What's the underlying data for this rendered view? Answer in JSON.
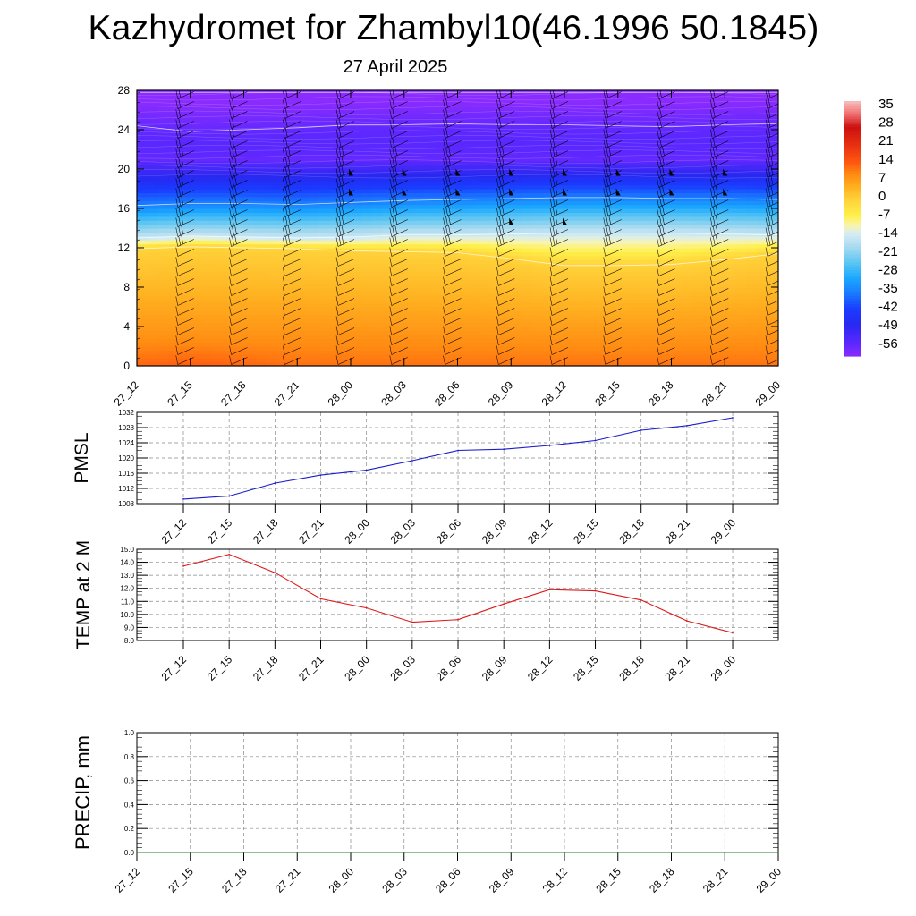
{
  "header": {
    "title": "Kazhydromet for Zhambyl10(46.1996 50.1845)",
    "date": "27 April 2025"
  },
  "colors": {
    "pmsl_line": "#1a1acc",
    "temp_line": "#dd1a1a",
    "precip_line": "#2a7a2a",
    "grid": "#888888"
  },
  "chart_data": [
    {
      "type": "heatmap",
      "name": "vertical-cross-section",
      "x_categories": [
        "27_12",
        "27_15",
        "27_18",
        "27_21",
        "28_00",
        "28_03",
        "28_06",
        "28_09",
        "28_12",
        "28_15",
        "28_18",
        "28_21",
        "29_00"
      ],
      "ylim": [
        0,
        28
      ],
      "y_ticks": [
        0,
        4,
        8,
        12,
        16,
        20,
        24,
        28
      ],
      "colorbar": {
        "labels": [
          "35",
          "28",
          "21",
          "14",
          "7",
          "0",
          "-7",
          "-14",
          "-21",
          "-28",
          "-35",
          "-42",
          "-49",
          "-56"
        ],
        "range": [
          -60,
          38
        ]
      },
      "isotherm_levels": [
        {
          "label": "0",
          "y": [
            11.9,
            12.1,
            12.0,
            11.9,
            11.7,
            11.6,
            11.5,
            10.9,
            10.2,
            10.2,
            10.3,
            10.8,
            11.4
          ]
        },
        {
          "label": "-14",
          "y": [
            13.0,
            13.2,
            13.1,
            13.0,
            13.1,
            13.3,
            13.3,
            13.4,
            13.5,
            13.5,
            13.5,
            13.4,
            13.3
          ]
        },
        {
          "label": "-35",
          "y": [
            16.3,
            16.5,
            16.5,
            16.4,
            16.6,
            16.8,
            16.9,
            17.0,
            17.1,
            17.1,
            17.0,
            17.0,
            16.9
          ]
        },
        {
          "label": "-56",
          "y": [
            24.4,
            23.8,
            24.0,
            24.2,
            24.5,
            24.5,
            24.6,
            24.5,
            24.5,
            24.4,
            24.3,
            24.5,
            24.6
          ]
        }
      ],
      "surface_warm_core": {
        "x": "27_15",
        "y": 1,
        "value": 14
      }
    },
    {
      "type": "line",
      "name": "PMSL",
      "ylabel": "PMSL",
      "categories": [
        "27_12",
        "27_15",
        "27_18",
        "27_21",
        "28_00",
        "28_03",
        "28_06",
        "28_09",
        "28_12",
        "28_15",
        "28_18",
        "28_21",
        "29_00"
      ],
      "values": [
        1009.2,
        1010.0,
        1013.4,
        1015.5,
        1016.8,
        1019.3,
        1022.0,
        1022.3,
        1023.3,
        1024.6,
        1027.3,
        1028.5,
        1030.6
      ],
      "ylim": [
        1008,
        1032
      ],
      "y_ticks": [
        "1008",
        "1012",
        "1016",
        "1020",
        "1024",
        "1028",
        "1032"
      ],
      "grid": true
    },
    {
      "type": "line",
      "name": "TEMP",
      "ylabel": "TEMP at 2 M",
      "categories": [
        "27_12",
        "27_15",
        "27_18",
        "27_21",
        "28_00",
        "28_03",
        "28_06",
        "28_09",
        "28_12",
        "28_15",
        "28_18",
        "28_21",
        "29_00"
      ],
      "values": [
        13.7,
        14.6,
        13.2,
        11.2,
        10.5,
        9.4,
        9.6,
        10.8,
        11.9,
        11.8,
        11.1,
        9.5,
        8.6
      ],
      "ylim": [
        8.0,
        15.0
      ],
      "y_ticks": [
        "8.0",
        "9.0",
        "10.0",
        "11.0",
        "12.0",
        "13.0",
        "14.0",
        "15.0"
      ],
      "grid": true
    },
    {
      "type": "line",
      "name": "PRECIP",
      "ylabel": "PRECIP, mm",
      "categories": [
        "27_12",
        "27_15",
        "27_18",
        "27_21",
        "28_00",
        "28_03",
        "28_06",
        "28_09",
        "28_12",
        "28_15",
        "28_18",
        "28_21",
        "29_00"
      ],
      "values": [
        0,
        0,
        0,
        0,
        0,
        0,
        0,
        0,
        0,
        0,
        0,
        0,
        0
      ],
      "ylim": [
        0.0,
        1.0
      ],
      "y_ticks": [
        "0.0",
        "0.2",
        "0.4",
        "0.6",
        "0.8",
        "1.0"
      ],
      "grid": true
    }
  ]
}
